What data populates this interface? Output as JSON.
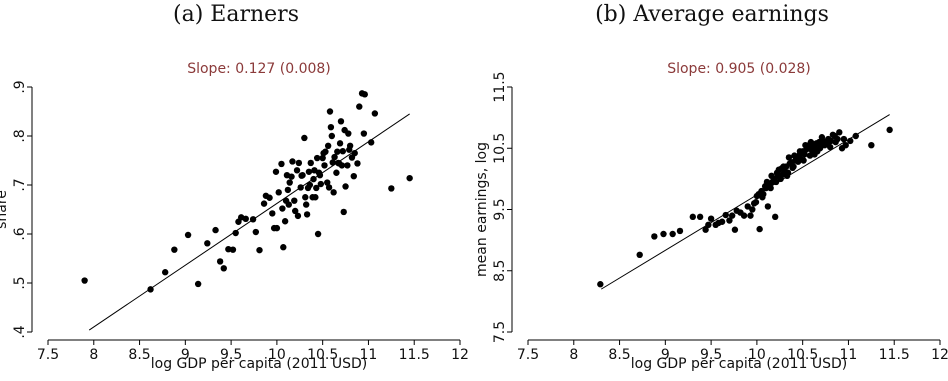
{
  "panel_titles": [
    "(a) Earners",
    "(b) Average earnings"
  ],
  "chart_data": [
    {
      "type": "scatter",
      "title": "(a) Earners",
      "annotation": "Slope: 0.127 (0.008)",
      "annotation_color": "#8b3a3a",
      "xlabel": "log GDP per capita (2011 USD)",
      "ylabel": "share",
      "xlim": [
        7.5,
        12
      ],
      "ylim": [
        0.4,
        0.9
      ],
      "xticks": [
        7.5,
        8,
        8.5,
        9,
        9.5,
        10,
        10.5,
        11,
        11.5,
        12
      ],
      "xtick_labels": [
        "7.5",
        "8",
        "8.5",
        "9",
        "9.5",
        "10",
        "10.5",
        "11",
        "11.5",
        "12"
      ],
      "yticks": [
        0.4,
        0.5,
        0.6,
        0.7,
        0.8,
        0.9
      ],
      "ytick_labels": [
        ".4",
        ".5",
        ".6",
        ".7",
        ".8",
        ".9"
      ],
      "grid": false,
      "fit_line": {
        "x": [
          7.95,
          11.45
        ],
        "y": [
          0.404,
          0.845
        ]
      },
      "points": [
        [
          7.9,
          0.505
        ],
        [
          8.62,
          0.487
        ],
        [
          8.78,
          0.522
        ],
        [
          8.88,
          0.568
        ],
        [
          9.03,
          0.598
        ],
        [
          9.14,
          0.498
        ],
        [
          9.24,
          0.581
        ],
        [
          9.33,
          0.608
        ],
        [
          9.38,
          0.544
        ],
        [
          9.42,
          0.53
        ],
        [
          9.47,
          0.569
        ],
        [
          9.52,
          0.568
        ],
        [
          9.55,
          0.602
        ],
        [
          9.58,
          0.625
        ],
        [
          9.61,
          0.634
        ],
        [
          9.66,
          0.631
        ],
        [
          9.74,
          0.63
        ],
        [
          9.77,
          0.604
        ],
        [
          9.81,
          0.567
        ],
        [
          9.86,
          0.662
        ],
        [
          9.88,
          0.678
        ],
        [
          9.92,
          0.674
        ],
        [
          9.95,
          0.642
        ],
        [
          9.97,
          0.612
        ],
        [
          10.0,
          0.612
        ],
        [
          10.02,
          0.685
        ],
        [
          10.05,
          0.743
        ],
        [
          10.07,
          0.573
        ],
        [
          10.1,
          0.668
        ],
        [
          10.12,
          0.69
        ],
        [
          10.14,
          0.705
        ],
        [
          10.16,
          0.717
        ],
        [
          10.2,
          0.647
        ],
        [
          10.23,
          0.637
        ],
        [
          10.27,
          0.719
        ],
        [
          10.3,
          0.796
        ],
        [
          10.31,
          0.675
        ],
        [
          10.34,
          0.694
        ],
        [
          10.37,
          0.745
        ],
        [
          10.4,
          0.712
        ],
        [
          10.43,
          0.694
        ],
        [
          10.46,
          0.725
        ],
        [
          10.48,
          0.702
        ],
        [
          10.5,
          0.755
        ],
        [
          10.53,
          0.768
        ],
        [
          10.56,
          0.78
        ],
        [
          10.58,
          0.85
        ],
        [
          10.6,
          0.8
        ],
        [
          10.62,
          0.685
        ],
        [
          10.65,
          0.725
        ],
        [
          10.68,
          0.744
        ],
        [
          10.7,
          0.83
        ],
        [
          10.72,
          0.769
        ],
        [
          10.75,
          0.697
        ],
        [
          10.78,
          0.805
        ],
        [
          10.82,
          0.756
        ],
        [
          10.85,
          0.765
        ],
        [
          10.9,
          0.86
        ],
        [
          10.93,
          0.887
        ],
        [
          10.96,
          0.885
        ],
        [
          11.03,
          0.787
        ],
        [
          11.07,
          0.846
        ],
        [
          11.25,
          0.693
        ],
        [
          11.45,
          0.714
        ],
        [
          10.06,
          0.652
        ],
        [
          10.13,
          0.66
        ],
        [
          10.17,
          0.748
        ],
        [
          10.22,
          0.73
        ],
        [
          10.26,
          0.695
        ],
        [
          10.33,
          0.64
        ],
        [
          10.36,
          0.7
        ],
        [
          10.39,
          0.675
        ],
        [
          10.41,
          0.73
        ],
        [
          10.44,
          0.755
        ],
        [
          10.47,
          0.72
        ],
        [
          10.52,
          0.74
        ],
        [
          10.55,
          0.705
        ],
        [
          10.59,
          0.818
        ],
        [
          10.63,
          0.757
        ],
        [
          10.67,
          0.745
        ],
        [
          10.69,
          0.785
        ],
        [
          10.74,
          0.812
        ],
        [
          10.77,
          0.74
        ],
        [
          10.8,
          0.78
        ],
        [
          10.84,
          0.718
        ],
        [
          9.99,
          0.727
        ],
        [
          10.09,
          0.626
        ],
        [
          10.19,
          0.668
        ],
        [
          10.28,
          0.72
        ],
        [
          10.35,
          0.727
        ],
        [
          10.45,
          0.6
        ],
        [
          10.51,
          0.765
        ],
        [
          10.57,
          0.695
        ],
        [
          10.61,
          0.746
        ],
        [
          10.66,
          0.768
        ],
        [
          10.71,
          0.74
        ],
        [
          10.79,
          0.772
        ],
        [
          10.88,
          0.744
        ],
        [
          10.73,
          0.645
        ],
        [
          10.95,
          0.805
        ],
        [
          10.11,
          0.72
        ],
        [
          10.24,
          0.745
        ],
        [
          10.32,
          0.66
        ],
        [
          10.42,
          0.675
        ]
      ]
    },
    {
      "type": "scatter",
      "title": "(b) Average earnings",
      "annotation": "Slope: 0.905 (0.028)",
      "annotation_color": "#8b3a3a",
      "xlabel": "log GDP per capita (2011 USD)",
      "ylabel": "mean earnings, log",
      "xlim": [
        7.5,
        12
      ],
      "ylim": [
        7.5,
        11.5
      ],
      "xticks": [
        7.5,
        8,
        8.5,
        9,
        9.5,
        10,
        10.5,
        11,
        11.5,
        12
      ],
      "xtick_labels": [
        "7.5",
        "8",
        "8.5",
        "9",
        "9.5",
        "10",
        "10.5",
        "11",
        "11.5",
        "12"
      ],
      "yticks": [
        7.5,
        8.5,
        9.5,
        10.5,
        11.5
      ],
      "ytick_labels": [
        "7.5",
        "8.5",
        "9.5",
        "10.5",
        "11.5"
      ],
      "grid": false,
      "fit_line": {
        "x": [
          8.3,
          11.45
        ],
        "y": [
          8.2,
          11.05
        ]
      },
      "points": [
        [
          8.29,
          8.28
        ],
        [
          8.72,
          8.76
        ],
        [
          8.88,
          9.06
        ],
        [
          8.98,
          9.1
        ],
        [
          9.08,
          9.1
        ],
        [
          9.16,
          9.15
        ],
        [
          9.3,
          9.38
        ],
        [
          9.38,
          9.38
        ],
        [
          9.44,
          9.17
        ],
        [
          9.47,
          9.25
        ],
        [
          9.5,
          9.35
        ],
        [
          9.55,
          9.25
        ],
        [
          9.58,
          9.28
        ],
        [
          9.62,
          9.3
        ],
        [
          9.66,
          9.41
        ],
        [
          9.7,
          9.32
        ],
        [
          9.73,
          9.4
        ],
        [
          9.76,
          9.17
        ],
        [
          9.78,
          9.48
        ],
        [
          9.82,
          9.45
        ],
        [
          9.86,
          9.4
        ],
        [
          9.9,
          9.55
        ],
        [
          9.93,
          9.4
        ],
        [
          9.95,
          9.5
        ],
        [
          9.97,
          9.6
        ],
        [
          10.0,
          9.72
        ],
        [
          10.02,
          9.75
        ],
        [
          10.03,
          9.18
        ],
        [
          10.05,
          9.8
        ],
        [
          10.07,
          9.75
        ],
        [
          10.09,
          9.88
        ],
        [
          10.1,
          9.85
        ],
        [
          10.12,
          9.55
        ],
        [
          10.15,
          9.85
        ],
        [
          10.17,
          9.95
        ],
        [
          10.19,
          10.0
        ],
        [
          10.2,
          9.38
        ],
        [
          10.22,
          10.1
        ],
        [
          10.24,
          10.15
        ],
        [
          10.26,
          10.0
        ],
        [
          10.28,
          10.07
        ],
        [
          10.3,
          10.12
        ],
        [
          10.32,
          10.2
        ],
        [
          10.34,
          10.1
        ],
        [
          10.36,
          10.25
        ],
        [
          10.38,
          10.27
        ],
        [
          10.4,
          10.2
        ],
        [
          10.42,
          10.3
        ],
        [
          10.44,
          10.35
        ],
        [
          10.46,
          10.38
        ],
        [
          10.48,
          10.32
        ],
        [
          10.5,
          10.45
        ],
        [
          10.52,
          10.4
        ],
        [
          10.54,
          10.48
        ],
        [
          10.56,
          10.5
        ],
        [
          10.58,
          10.38
        ],
        [
          10.6,
          10.47
        ],
        [
          10.62,
          10.55
        ],
        [
          10.64,
          10.5
        ],
        [
          10.66,
          10.45
        ],
        [
          10.68,
          10.6
        ],
        [
          10.7,
          10.55
        ],
        [
          10.72,
          10.62
        ],
        [
          10.75,
          10.6
        ],
        [
          10.78,
          10.65
        ],
        [
          10.8,
          10.52
        ],
        [
          10.83,
          10.72
        ],
        [
          10.86,
          10.6
        ],
        [
          10.9,
          10.76
        ],
        [
          10.93,
          10.5
        ],
        [
          10.97,
          10.55
        ],
        [
          11.02,
          10.62
        ],
        [
          11.08,
          10.7
        ],
        [
          11.25,
          10.55
        ],
        [
          11.45,
          10.8
        ],
        [
          10.13,
          9.9
        ],
        [
          10.21,
          9.95
        ],
        [
          10.27,
          10.17
        ],
        [
          10.33,
          10.05
        ],
        [
          10.39,
          10.18
        ],
        [
          10.45,
          10.28
        ],
        [
          10.51,
          10.3
        ],
        [
          10.57,
          10.55
        ],
        [
          10.63,
          10.4
        ],
        [
          10.69,
          10.5
        ],
        [
          10.74,
          10.55
        ],
        [
          10.81,
          10.62
        ],
        [
          10.88,
          10.65
        ],
        [
          9.99,
          9.62
        ],
        [
          10.06,
          9.7
        ],
        [
          10.11,
          9.95
        ],
        [
          10.16,
          10.05
        ],
        [
          10.23,
          10.05
        ],
        [
          10.29,
          10.2
        ],
        [
          10.35,
          10.35
        ],
        [
          10.41,
          10.38
        ],
        [
          10.47,
          10.45
        ],
        [
          10.53,
          10.55
        ],
        [
          10.59,
          10.6
        ],
        [
          10.65,
          10.58
        ],
        [
          10.71,
          10.68
        ],
        [
          10.77,
          10.58
        ],
        [
          10.85,
          10.7
        ],
        [
          10.95,
          10.65
        ]
      ]
    }
  ]
}
